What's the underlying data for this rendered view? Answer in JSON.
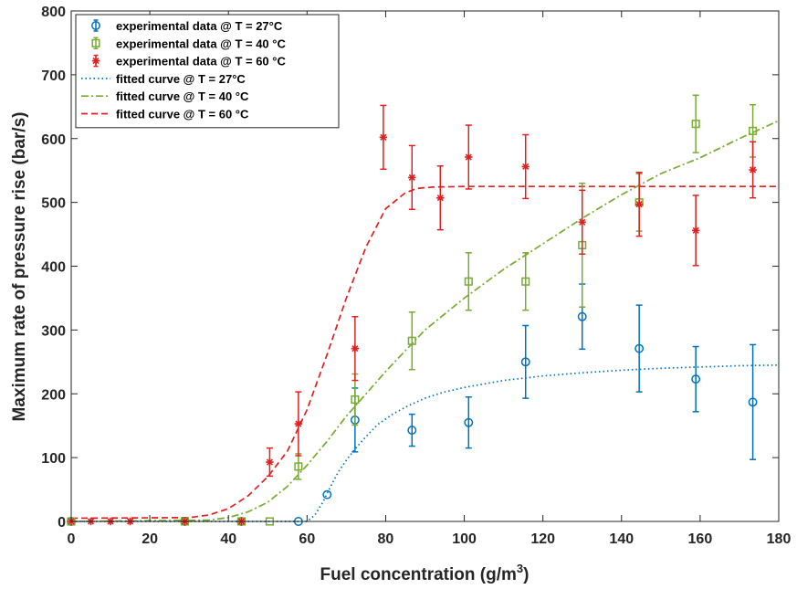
{
  "chart_data": {
    "type": "scatter",
    "xlabel": "Fuel concentration (g/m",
    "xlabel_superscript": "3",
    "xlabel_suffix": ")",
    "ylabel": "Maximum rate of pressure rise (bar/s)",
    "xlim": [
      0,
      180
    ],
    "ylim": [
      0,
      800
    ],
    "xticks": [
      "0",
      "20",
      "40",
      "60",
      "80",
      "100",
      "120",
      "140",
      "160",
      "180"
    ],
    "yticks": [
      "0",
      "100",
      "200",
      "300",
      "400",
      "500",
      "600",
      "700",
      "800"
    ],
    "grid": false,
    "legend_position": "top-left",
    "series": [
      {
        "name": "experimental data @ T = 27°C",
        "kind": "errorbar",
        "marker": "circle",
        "color": "#0072BD",
        "points": [
          {
            "x": 0,
            "y": 0,
            "err": 0
          },
          {
            "x": 28.9,
            "y": 0,
            "err": 0
          },
          {
            "x": 43.3,
            "y": 0,
            "err": 0
          },
          {
            "x": 57.8,
            "y": 0,
            "err": 0
          },
          {
            "x": 65.1,
            "y": 42,
            "err": 0
          },
          {
            "x": 72.2,
            "y": 159,
            "err": 50
          },
          {
            "x": 86.7,
            "y": 143,
            "err": 25
          },
          {
            "x": 101.1,
            "y": 155,
            "err": 40
          },
          {
            "x": 115.6,
            "y": 250,
            "err": 57
          },
          {
            "x": 130.0,
            "y": 321,
            "err": 51
          },
          {
            "x": 144.5,
            "y": 271,
            "err": 68
          },
          {
            "x": 158.9,
            "y": 223,
            "err": 51
          },
          {
            "x": 173.4,
            "y": 187,
            "err": 90
          }
        ]
      },
      {
        "name": "experimental data @ T = 40 °C",
        "kind": "errorbar",
        "marker": "square",
        "color": "#77AC30",
        "points": [
          {
            "x": 0,
            "y": 0,
            "err": 0
          },
          {
            "x": 28.9,
            "y": 0,
            "err": 0
          },
          {
            "x": 43.3,
            "y": 0,
            "err": 0
          },
          {
            "x": 50.5,
            "y": 0,
            "err": 0
          },
          {
            "x": 57.8,
            "y": 86,
            "err": 20
          },
          {
            "x": 72.2,
            "y": 191,
            "err": 40
          },
          {
            "x": 86.7,
            "y": 283,
            "err": 45
          },
          {
            "x": 101.1,
            "y": 376,
            "err": 45
          },
          {
            "x": 115.6,
            "y": 376,
            "err": 45
          },
          {
            "x": 130.0,
            "y": 433,
            "err": 97
          },
          {
            "x": 144.5,
            "y": 500,
            "err": 45
          },
          {
            "x": 158.9,
            "y": 623,
            "err": 45
          },
          {
            "x": 173.4,
            "y": 612,
            "err": 41
          }
        ]
      },
      {
        "name": "experimental data @ T = 60 °C",
        "kind": "errorbar",
        "marker": "star",
        "color": "#E02020",
        "points": [
          {
            "x": 0,
            "y": 0,
            "err": 0
          },
          {
            "x": 5,
            "y": 0,
            "err": 0
          },
          {
            "x": 10,
            "y": 0,
            "err": 0
          },
          {
            "x": 15,
            "y": 0,
            "err": 0
          },
          {
            "x": 28.9,
            "y": 0,
            "err": 0
          },
          {
            "x": 43.3,
            "y": 0,
            "err": 0
          },
          {
            "x": 50.5,
            "y": 93,
            "err": 22
          },
          {
            "x": 57.8,
            "y": 153,
            "err": 50
          },
          {
            "x": 72.2,
            "y": 271,
            "err": 50
          },
          {
            "x": 79.4,
            "y": 602,
            "err": 50
          },
          {
            "x": 86.7,
            "y": 539,
            "err": 50
          },
          {
            "x": 93.9,
            "y": 507,
            "err": 50
          },
          {
            "x": 101.1,
            "y": 571,
            "err": 50
          },
          {
            "x": 115.6,
            "y": 556,
            "err": 50
          },
          {
            "x": 130.0,
            "y": 469,
            "err": 50
          },
          {
            "x": 144.5,
            "y": 497,
            "err": 50
          },
          {
            "x": 158.9,
            "y": 456,
            "err": 55
          },
          {
            "x": 173.4,
            "y": 551,
            "err": 44
          }
        ]
      },
      {
        "name": "fitted curve @ T = 27°C",
        "kind": "line",
        "dash": "dotted",
        "color": "#0072BD",
        "x": [
          0,
          59,
          60,
          62,
          64,
          66,
          68,
          70,
          72,
          75,
          78,
          82,
          86,
          90,
          95,
          100,
          110,
          120,
          130,
          140,
          150,
          160,
          170,
          180
        ],
        "y": [
          0,
          0,
          0,
          10,
          30,
          55,
          78,
          96,
          112,
          133,
          152,
          169,
          182,
          193,
          203,
          210,
          221,
          228,
          233,
          237,
          240,
          242,
          244,
          245
        ]
      },
      {
        "name": "fitted curve @ T = 40 °C",
        "kind": "line",
        "dash": "dashdot",
        "color": "#77AC30",
        "x": [
          0,
          35,
          40,
          45,
          50,
          55,
          60,
          65,
          70,
          75,
          80,
          90,
          100,
          110,
          120,
          130,
          140,
          150,
          160,
          170,
          180
        ],
        "y": [
          0,
          2,
          6,
          15,
          30,
          55,
          88,
          125,
          165,
          200,
          235,
          300,
          350,
          395,
          435,
          475,
          512,
          545,
          570,
          600,
          628
        ]
      },
      {
        "name": "fitted curve @ T = 60 °C",
        "kind": "line",
        "dash": "dashed",
        "color": "#E02020",
        "x": [
          0,
          30,
          35,
          40,
          45,
          50,
          55,
          60,
          65,
          70,
          75,
          80,
          85,
          88,
          92,
          100,
          120,
          140,
          160,
          180
        ],
        "y": [
          5,
          6,
          10,
          20,
          40,
          70,
          110,
          175,
          260,
          350,
          430,
          490,
          515,
          522,
          524,
          525,
          525,
          525,
          525,
          525
        ]
      }
    ]
  }
}
